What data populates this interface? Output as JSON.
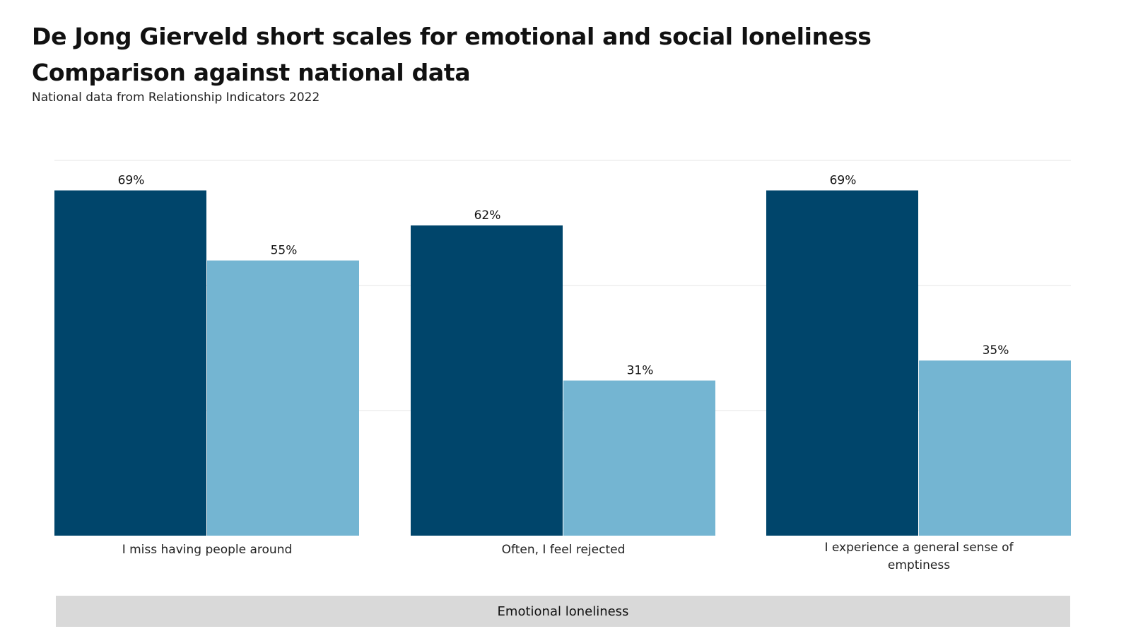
{
  "title_line1": "De Jong Gierveld short scales for emotional and social loneliness",
  "title_line2": "Comparison against national data",
  "subtitle": "National data from Relationship Indicators 2022",
  "colors": {
    "series_1": "#00456b",
    "series_2": "#74b5d2",
    "band": "#d9d9d9",
    "grid": "#e6e6e6"
  },
  "chart_data": {
    "type": "bar",
    "categories": [
      "I miss having people around",
      "Often, I feel rejected",
      "I experience a general sense of emptiness"
    ],
    "series": [
      {
        "values": [
          69,
          62,
          69
        ],
        "labels": [
          "69%",
          "62%",
          "69%"
        ]
      },
      {
        "values": [
          55,
          31,
          35
        ],
        "labels": [
          "55%",
          "31%",
          "35%"
        ]
      }
    ],
    "ylim": [
      0,
      75
    ],
    "grid": true,
    "group_label": "Emotional loneliness"
  }
}
